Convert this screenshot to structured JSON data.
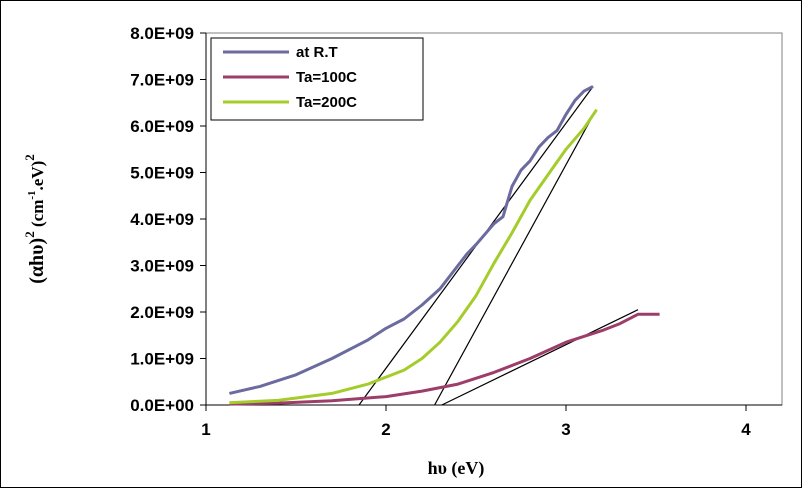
{
  "chart_data": {
    "type": "line",
    "title": "",
    "xlabel": "hυ (eV)",
    "ylabel_main": "(αhυ)",
    "ylabel_unit": "(cm",
    "ylabel_unit_exp": "-1",
    "ylabel_unit_tail": ".eV)",
    "ylabel_exp": "2",
    "xlim": [
      1,
      4.2
    ],
    "ylim": [
      0,
      8000000000
    ],
    "x_ticks": [
      1,
      2,
      3,
      4
    ],
    "x_tick_labels": [
      "1",
      "2",
      "3",
      "4"
    ],
    "y_ticks": [
      0,
      1000000000,
      2000000000,
      3000000000,
      4000000000,
      5000000000,
      6000000000,
      7000000000,
      8000000000
    ],
    "y_tick_labels": [
      "0.0E+00",
      "1.0E+09",
      "2.0E+09",
      "3.0E+09",
      "4.0E+09",
      "5.0E+09",
      "6.0E+09",
      "7.0E+09",
      "8.0E+09"
    ],
    "grid": false,
    "legend_position": "top-left",
    "series": [
      {
        "name": "at R.T",
        "color": "#6b6b9f",
        "x": [
          1.13,
          1.3,
          1.5,
          1.7,
          1.9,
          2.0,
          2.1,
          2.2,
          2.3,
          2.4,
          2.45,
          2.5,
          2.6,
          2.65,
          2.7,
          2.75,
          2.8,
          2.85,
          2.9,
          2.95,
          3.0,
          3.05,
          3.1,
          3.15
        ],
        "y": [
          250000000,
          400000000,
          650000000,
          1000000000,
          1400000000,
          1650000000,
          1850000000,
          2150000000,
          2500000000,
          3000000000,
          3250000000,
          3450000000,
          3900000000,
          4050000000,
          4700000000,
          5050000000,
          5250000000,
          5550000000,
          5750000000,
          5900000000,
          6250000000,
          6550000000,
          6750000000,
          6850000000
        ]
      },
      {
        "name": "Ta=100C",
        "color": "#9c3d6a",
        "x": [
          1.13,
          1.4,
          1.7,
          2.0,
          2.2,
          2.4,
          2.6,
          2.8,
          3.0,
          3.2,
          3.3,
          3.4,
          3.52
        ],
        "y": [
          20000000,
          40000000,
          90000000,
          180000000,
          300000000,
          450000000,
          700000000,
          1000000000,
          1350000000,
          1600000000,
          1750000000,
          1950000000,
          1950000000
        ]
      },
      {
        "name": "Ta=200C",
        "color": "#a4cc2a",
        "x": [
          1.13,
          1.4,
          1.7,
          1.9,
          2.0,
          2.1,
          2.2,
          2.3,
          2.4,
          2.5,
          2.6,
          2.7,
          2.8,
          2.9,
          3.0,
          3.1,
          3.17
        ],
        "y": [
          50000000,
          100000000,
          250000000,
          450000000,
          600000000,
          750000000,
          1000000000,
          1350000000,
          1800000000,
          2350000000,
          3050000000,
          3700000000,
          4400000000,
          4950000000,
          5500000000,
          5950000000,
          6350000000
        ]
      }
    ],
    "fit_lines": [
      {
        "x": [
          1.85,
          3.15
        ],
        "y": [
          0,
          6850000000
        ]
      },
      {
        "x": [
          2.27,
          3.16
        ],
        "y": [
          0,
          6300000000
        ]
      },
      {
        "x": [
          2.31,
          3.4
        ],
        "y": [
          0,
          2050000000
        ]
      }
    ]
  }
}
